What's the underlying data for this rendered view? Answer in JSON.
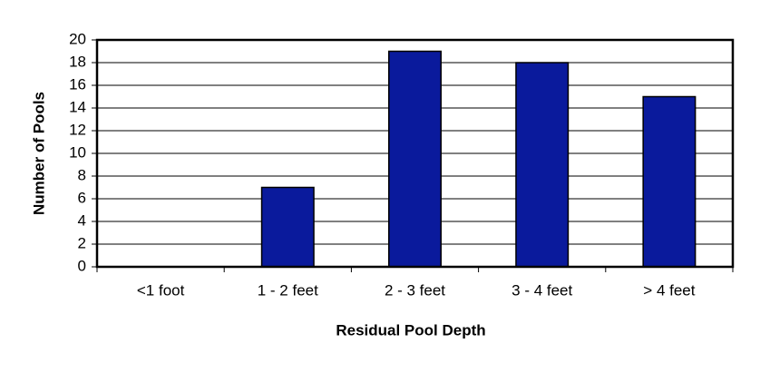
{
  "chart_data": {
    "type": "bar",
    "x_label": "Residual Pool Depth",
    "y_label": "Number of Pools",
    "categories": [
      "<1 foot",
      "1 - 2 feet",
      "2 - 3 feet",
      "3 - 4 feet",
      "> 4 feet"
    ],
    "values": [
      0,
      7,
      19,
      18,
      15
    ],
    "color": "#0a1a9c",
    "ylim": [
      0,
      20
    ],
    "yticks": [
      0,
      2,
      4,
      6,
      8,
      10,
      12,
      14,
      16,
      18,
      20
    ],
    "grid": true
  }
}
